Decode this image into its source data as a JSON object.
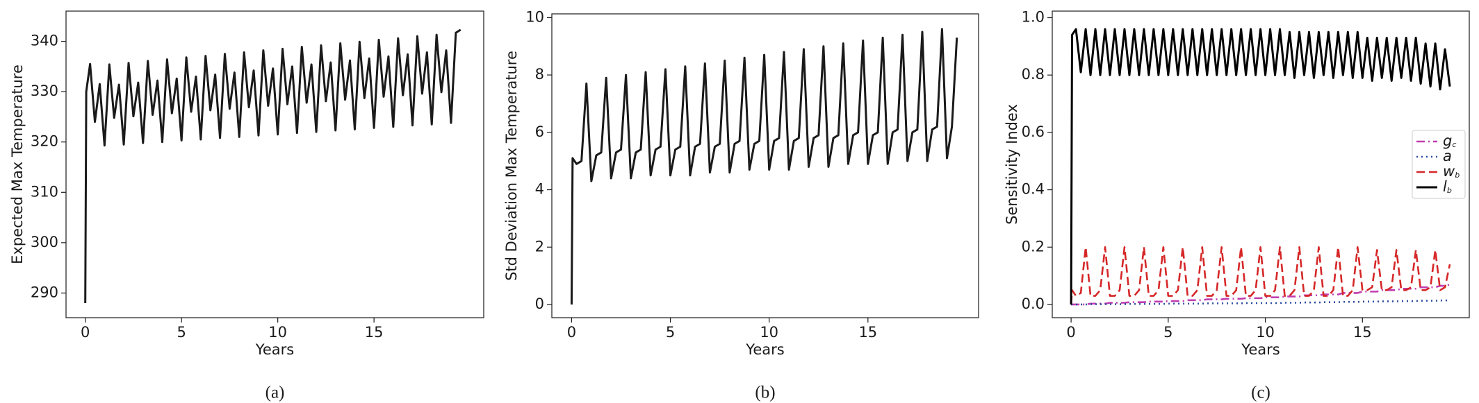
{
  "chart_data": [
    {
      "type": "line",
      "caption": "(a)",
      "xlabel": "Years",
      "ylabel": "Expected Max Temperature",
      "xlim": [
        -1,
        20.7
      ],
      "ylim": [
        285.1,
        346.0
      ],
      "xticks": [
        0,
        5,
        10,
        15
      ],
      "yticks": [
        290,
        300,
        310,
        320,
        330,
        340
      ],
      "x": [
        0,
        0.05,
        0.25,
        0.5,
        0.75,
        1,
        1.25,
        1.5,
        1.75,
        2,
        2.25,
        2.5,
        2.75,
        3,
        3.25,
        3.5,
        3.75,
        4,
        4.25,
        4.5,
        4.75,
        5,
        5.25,
        5.5,
        5.75,
        6,
        6.25,
        6.5,
        6.75,
        7,
        7.25,
        7.5,
        7.75,
        8,
        8.25,
        8.5,
        8.75,
        9,
        9.25,
        9.5,
        9.75,
        10,
        10.25,
        10.5,
        10.75,
        11,
        11.25,
        11.5,
        11.75,
        12,
        12.25,
        12.5,
        12.75,
        13,
        13.25,
        13.5,
        13.75,
        14,
        14.25,
        14.5,
        14.75,
        15,
        15.25,
        15.5,
        15.75,
        16,
        16.25,
        16.5,
        16.75,
        17,
        17.25,
        17.5,
        17.75,
        18,
        18.25,
        18.5,
        18.75,
        19,
        19.25,
        19.5
      ],
      "series": [
        {
          "name": "Expected",
          "color": "#1a1a1a",
          "style": "solid",
          "values": [
            288,
            330,
            335.5,
            324,
            331.5,
            319.3,
            335.4,
            324.8,
            331.4,
            319.5,
            335.7,
            325.1,
            331.8,
            319.8,
            336.1,
            325.4,
            332.2,
            320.0,
            336.4,
            325.7,
            332.6,
            320.3,
            336.8,
            326.0,
            333.0,
            320.5,
            337.1,
            326.3,
            333.4,
            320.8,
            337.5,
            326.6,
            333.8,
            321.0,
            337.8,
            326.9,
            334.2,
            321.3,
            338.2,
            327.2,
            334.6,
            321.5,
            338.5,
            327.5,
            335.0,
            321.8,
            338.9,
            327.8,
            335.4,
            322.0,
            339.2,
            328.1,
            335.8,
            322.3,
            339.6,
            328.4,
            336.2,
            322.5,
            339.9,
            328.7,
            336.6,
            322.8,
            340.3,
            329.0,
            337.0,
            323.0,
            340.6,
            329.3,
            337.4,
            323.3,
            341.0,
            329.6,
            337.8,
            323.5,
            341.3,
            329.9,
            338.2,
            323.8,
            341.7,
            342.3
          ]
        }
      ]
    },
    {
      "type": "line",
      "caption": "(b)",
      "xlabel": "Years",
      "ylabel": "Std Deviation Max Temperature",
      "xlim": [
        -1,
        20.6
      ],
      "ylim": [
        -0.46,
        10.13
      ],
      "xticks": [
        0,
        5,
        10,
        15
      ],
      "yticks": [
        0,
        2,
        4,
        6,
        8,
        10
      ],
      "x": [
        0,
        0.05,
        0.25,
        0.5,
        0.75,
        1,
        1.25,
        1.5,
        1.75,
        2,
        2.25,
        2.5,
        2.75,
        3,
        3.25,
        3.5,
        3.75,
        4,
        4.25,
        4.5,
        4.75,
        5,
        5.25,
        5.5,
        5.75,
        6,
        6.25,
        6.5,
        6.75,
        7,
        7.25,
        7.5,
        7.75,
        8,
        8.25,
        8.5,
        8.75,
        9,
        9.25,
        9.5,
        9.75,
        10,
        10.25,
        10.5,
        10.75,
        11,
        11.25,
        11.5,
        11.75,
        12,
        12.25,
        12.5,
        12.75,
        13,
        13.25,
        13.5,
        13.75,
        14,
        14.25,
        14.5,
        14.75,
        15,
        15.25,
        15.5,
        15.75,
        16,
        16.25,
        16.5,
        16.75,
        17,
        17.25,
        17.5,
        17.75,
        18,
        18.25,
        18.5,
        18.75,
        19,
        19.25,
        19.5
      ],
      "series": [
        {
          "name": "Std",
          "color": "#1a1a1a",
          "style": "solid",
          "values": [
            0,
            5.1,
            4.9,
            5.0,
            7.7,
            4.3,
            5.2,
            5.3,
            7.9,
            4.4,
            5.3,
            5.4,
            8.0,
            4.4,
            5.3,
            5.4,
            8.1,
            4.5,
            5.4,
            5.5,
            8.2,
            4.5,
            5.4,
            5.5,
            8.3,
            4.5,
            5.5,
            5.6,
            8.4,
            4.6,
            5.5,
            5.6,
            8.5,
            4.6,
            5.6,
            5.7,
            8.6,
            4.7,
            5.6,
            5.7,
            8.7,
            4.7,
            5.7,
            5.8,
            8.8,
            4.7,
            5.7,
            5.8,
            8.9,
            4.8,
            5.8,
            5.9,
            9.0,
            4.8,
            5.8,
            5.9,
            9.1,
            4.9,
            5.9,
            6.0,
            9.2,
            4.9,
            5.9,
            6.0,
            9.3,
            4.9,
            6.0,
            6.1,
            9.4,
            5.0,
            6.0,
            6.1,
            9.5,
            5.0,
            6.1,
            6.2,
            9.6,
            5.1,
            6.2,
            9.3
          ]
        }
      ]
    },
    {
      "type": "line",
      "caption": "(c)",
      "xlabel": "Years",
      "ylabel": "Sensitivity Index",
      "legend": "center right",
      "xlim": [
        -0.97,
        20.5
      ],
      "ylim": [
        -0.046,
        1.023
      ],
      "xticks": [
        0,
        5,
        10,
        15
      ],
      "yticks": [
        {
          "value": 0,
          "label": "0.0"
        },
        0.2,
        0.4,
        0.6,
        0.8,
        {
          "value": 1,
          "label": "1.0"
        }
      ],
      "x": [
        0,
        0.05,
        0.25,
        0.5,
        0.75,
        1,
        1.25,
        1.5,
        1.75,
        2,
        2.25,
        2.5,
        2.75,
        3,
        3.25,
        3.5,
        3.75,
        4,
        4.25,
        4.5,
        4.75,
        5,
        5.25,
        5.5,
        5.75,
        6,
        6.25,
        6.5,
        6.75,
        7,
        7.25,
        7.5,
        7.75,
        8,
        8.25,
        8.5,
        8.75,
        9,
        9.25,
        9.5,
        9.75,
        10,
        10.25,
        10.5,
        10.75,
        11,
        11.25,
        11.5,
        11.75,
        12,
        12.25,
        12.5,
        12.75,
        13,
        13.25,
        13.5,
        13.75,
        14,
        14.25,
        14.5,
        14.75,
        15,
        15.25,
        15.5,
        15.75,
        16,
        16.25,
        16.5,
        16.75,
        17,
        17.25,
        17.5,
        17.75,
        18,
        18.25,
        18.5,
        18.75,
        19,
        19.25,
        19.5
      ],
      "series": [
        {
          "name": "gc",
          "color": "#c03cb0",
          "style": "dashdot",
          "values": [
            0,
            0,
            0,
            0,
            0,
            0.003,
            0.003,
            0.003,
            0.003,
            0.006,
            0.006,
            0.006,
            0.006,
            0.008,
            0.008,
            0.008,
            0.008,
            0.01,
            0.01,
            0.01,
            0.01,
            0.012,
            0.012,
            0.012,
            0.012,
            0.015,
            0.015,
            0.015,
            0.015,
            0.018,
            0.018,
            0.018,
            0.018,
            0.02,
            0.02,
            0.02,
            0.02,
            0.022,
            0.022,
            0.022,
            0.022,
            0.025,
            0.025,
            0.025,
            0.025,
            0.028,
            0.028,
            0.028,
            0.028,
            0.032,
            0.032,
            0.032,
            0.032,
            0.035,
            0.035,
            0.035,
            0.035,
            0.04,
            0.04,
            0.04,
            0.04,
            0.045,
            0.045,
            0.045,
            0.045,
            0.05,
            0.05,
            0.05,
            0.05,
            0.055,
            0.055,
            0.055,
            0.055,
            0.06,
            0.06,
            0.06,
            0.06,
            0.065,
            0.065,
            0.07
          ]
        },
        {
          "name": "a",
          "color": "#2b4ba0",
          "style": "dotted",
          "values": [
            0,
            0,
            0,
            0,
            0,
            0.001,
            0.001,
            0.001,
            0.001,
            0.001,
            0.001,
            0.001,
            0.001,
            0.002,
            0.002,
            0.002,
            0.002,
            0.002,
            0.002,
            0.002,
            0.002,
            0.003,
            0.003,
            0.003,
            0.003,
            0.003,
            0.003,
            0.003,
            0.003,
            0.004,
            0.004,
            0.004,
            0.004,
            0.004,
            0.004,
            0.004,
            0.004,
            0.005,
            0.005,
            0.005,
            0.005,
            0.005,
            0.005,
            0.005,
            0.005,
            0.006,
            0.006,
            0.006,
            0.006,
            0.007,
            0.007,
            0.007,
            0.007,
            0.008,
            0.008,
            0.008,
            0.008,
            0.009,
            0.009,
            0.009,
            0.009,
            0.01,
            0.01,
            0.01,
            0.01,
            0.011,
            0.011,
            0.011,
            0.011,
            0.012,
            0.012,
            0.012,
            0.012,
            0.013,
            0.013,
            0.013,
            0.013,
            0.014,
            0.014,
            0.015
          ]
        },
        {
          "name": "wb",
          "color": "#d62728",
          "style": "dashed",
          "values": [
            0,
            0.05,
            0.03,
            0.04,
            0.2,
            0.03,
            0.03,
            0.05,
            0.2,
            0.03,
            0.03,
            0.05,
            0.2,
            0.03,
            0.03,
            0.05,
            0.2,
            0.03,
            0.03,
            0.05,
            0.2,
            0.03,
            0.03,
            0.05,
            0.2,
            0.03,
            0.03,
            0.05,
            0.2,
            0.03,
            0.03,
            0.05,
            0.2,
            0.03,
            0.03,
            0.05,
            0.2,
            0.03,
            0.03,
            0.05,
            0.2,
            0.03,
            0.03,
            0.05,
            0.2,
            0.03,
            0.03,
            0.05,
            0.2,
            0.03,
            0.03,
            0.05,
            0.2,
            0.03,
            0.03,
            0.05,
            0.2,
            0.03,
            0.03,
            0.05,
            0.2,
            0.05,
            0.05,
            0.06,
            0.19,
            0.05,
            0.05,
            0.06,
            0.19,
            0.05,
            0.05,
            0.06,
            0.19,
            0.05,
            0.05,
            0.06,
            0.19,
            0.05,
            0.06,
            0.14
          ]
        },
        {
          "name": "lb",
          "color": "#000000",
          "style": "solid",
          "values": [
            0,
            0.94,
            0.96,
            0.81,
            0.96,
            0.8,
            0.96,
            0.8,
            0.96,
            0.8,
            0.96,
            0.8,
            0.96,
            0.8,
            0.96,
            0.8,
            0.96,
            0.8,
            0.96,
            0.8,
            0.96,
            0.8,
            0.96,
            0.8,
            0.96,
            0.8,
            0.96,
            0.8,
            0.96,
            0.8,
            0.96,
            0.8,
            0.96,
            0.8,
            0.96,
            0.8,
            0.96,
            0.8,
            0.96,
            0.8,
            0.96,
            0.8,
            0.96,
            0.8,
            0.96,
            0.8,
            0.95,
            0.79,
            0.95,
            0.8,
            0.95,
            0.79,
            0.95,
            0.8,
            0.95,
            0.79,
            0.95,
            0.8,
            0.95,
            0.79,
            0.95,
            0.79,
            0.93,
            0.78,
            0.93,
            0.79,
            0.93,
            0.78,
            0.93,
            0.79,
            0.93,
            0.78,
            0.93,
            0.77,
            0.91,
            0.76,
            0.91,
            0.75,
            0.89,
            0.76
          ]
        }
      ]
    }
  ]
}
